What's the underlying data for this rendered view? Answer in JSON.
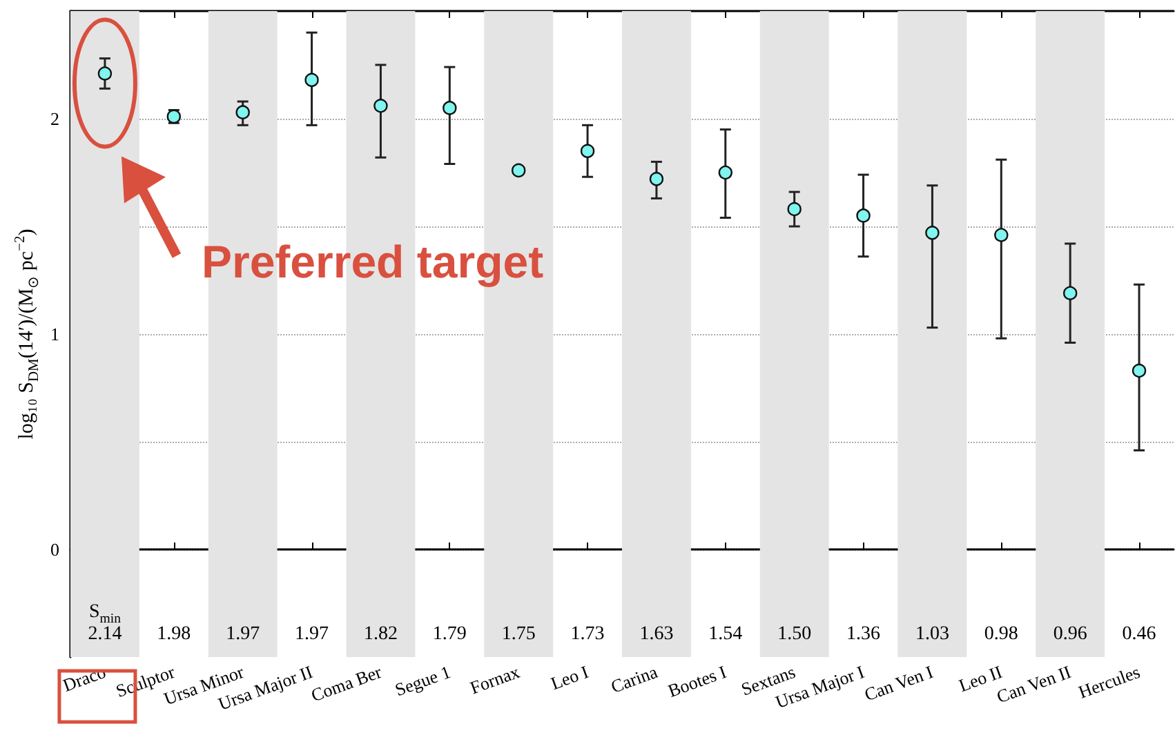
{
  "chart_data": {
    "type": "scatter",
    "ylabel": "log₁₀ S$_{DM}$(14′)/(M$_{⊙}$ pc$^{−2}$)",
    "categories": [
      "Draco",
      "Sculptor",
      "Ursa Minor",
      "Ursa Major II",
      "Coma Ber",
      "Segue 1",
      "Fornax",
      "Leo I",
      "Carina",
      "Bootes I",
      "Sextans",
      "Ursa Major I",
      "Can Ven I",
      "Leo II",
      "Can Ven II",
      "Hercules"
    ],
    "series": [
      {
        "color": "#80f4ef",
        "values": [
          2.21,
          2.01,
          2.03,
          2.18,
          2.06,
          2.05,
          1.76,
          1.85,
          1.72,
          1.75,
          1.58,
          1.55,
          1.47,
          1.46,
          1.19,
          0.83
        ],
        "errors": [
          [
            2.14,
            2.28
          ],
          [
            1.98,
            2.04
          ],
          [
            1.97,
            2.08
          ],
          [
            1.97,
            2.4
          ],
          [
            1.82,
            2.25
          ],
          [
            1.79,
            2.24
          ],
          [
            1.75,
            1.77
          ],
          [
            1.73,
            1.97
          ],
          [
            1.63,
            1.8
          ],
          [
            1.54,
            1.95
          ],
          [
            1.5,
            1.66
          ],
          [
            1.36,
            1.74
          ],
          [
            1.03,
            1.69
          ],
          [
            0.98,
            1.81
          ],
          [
            0.96,
            1.42
          ],
          [
            0.46,
            1.23
          ]
        ]
      }
    ],
    "ylim": [
      -0.5,
      2.5
    ],
    "yticks": [
      0,
      {
        "value": 0.5,
        "label": null
      },
      1,
      {
        "value": 1.5,
        "label": null
      },
      2
    ],
    "grid": "y",
    "marker": "circle",
    "bands": [
      {
        "axis": "x",
        "from": "Draco",
        "to": "Draco",
        "color": "#e4e4e4"
      },
      {
        "axis": "x",
        "from": "Ursa Minor",
        "to": "Ursa Minor",
        "color": "#e4e4e4"
      },
      {
        "axis": "x",
        "from": "Coma Ber",
        "to": "Coma Ber",
        "color": "#e4e4e4"
      },
      {
        "axis": "x",
        "from": "Fornax",
        "to": "Fornax",
        "color": "#e4e4e4"
      },
      {
        "axis": "x",
        "from": "Carina",
        "to": "Carina",
        "color": "#e4e4e4"
      },
      {
        "axis": "x",
        "from": "Sextans",
        "to": "Sextans",
        "color": "#e4e4e4"
      },
      {
        "axis": "x",
        "from": "Can Ven I",
        "to": "Can Ven I",
        "color": "#e4e4e4"
      },
      {
        "axis": "x",
        "from": "Can Ven II",
        "to": "Can Ven II",
        "color": "#e4e4e4"
      }
    ],
    "annotations": [
      "Preferred target",
      "S$_{min}$",
      "2.14",
      "1.98",
      "1.97",
      "1.97",
      "1.82",
      "1.79",
      "1.75",
      "1.73",
      "1.63",
      "1.54",
      "1.50",
      "1.36",
      "1.03",
      "0.98",
      "0.96",
      "0.46"
    ]
  }
}
